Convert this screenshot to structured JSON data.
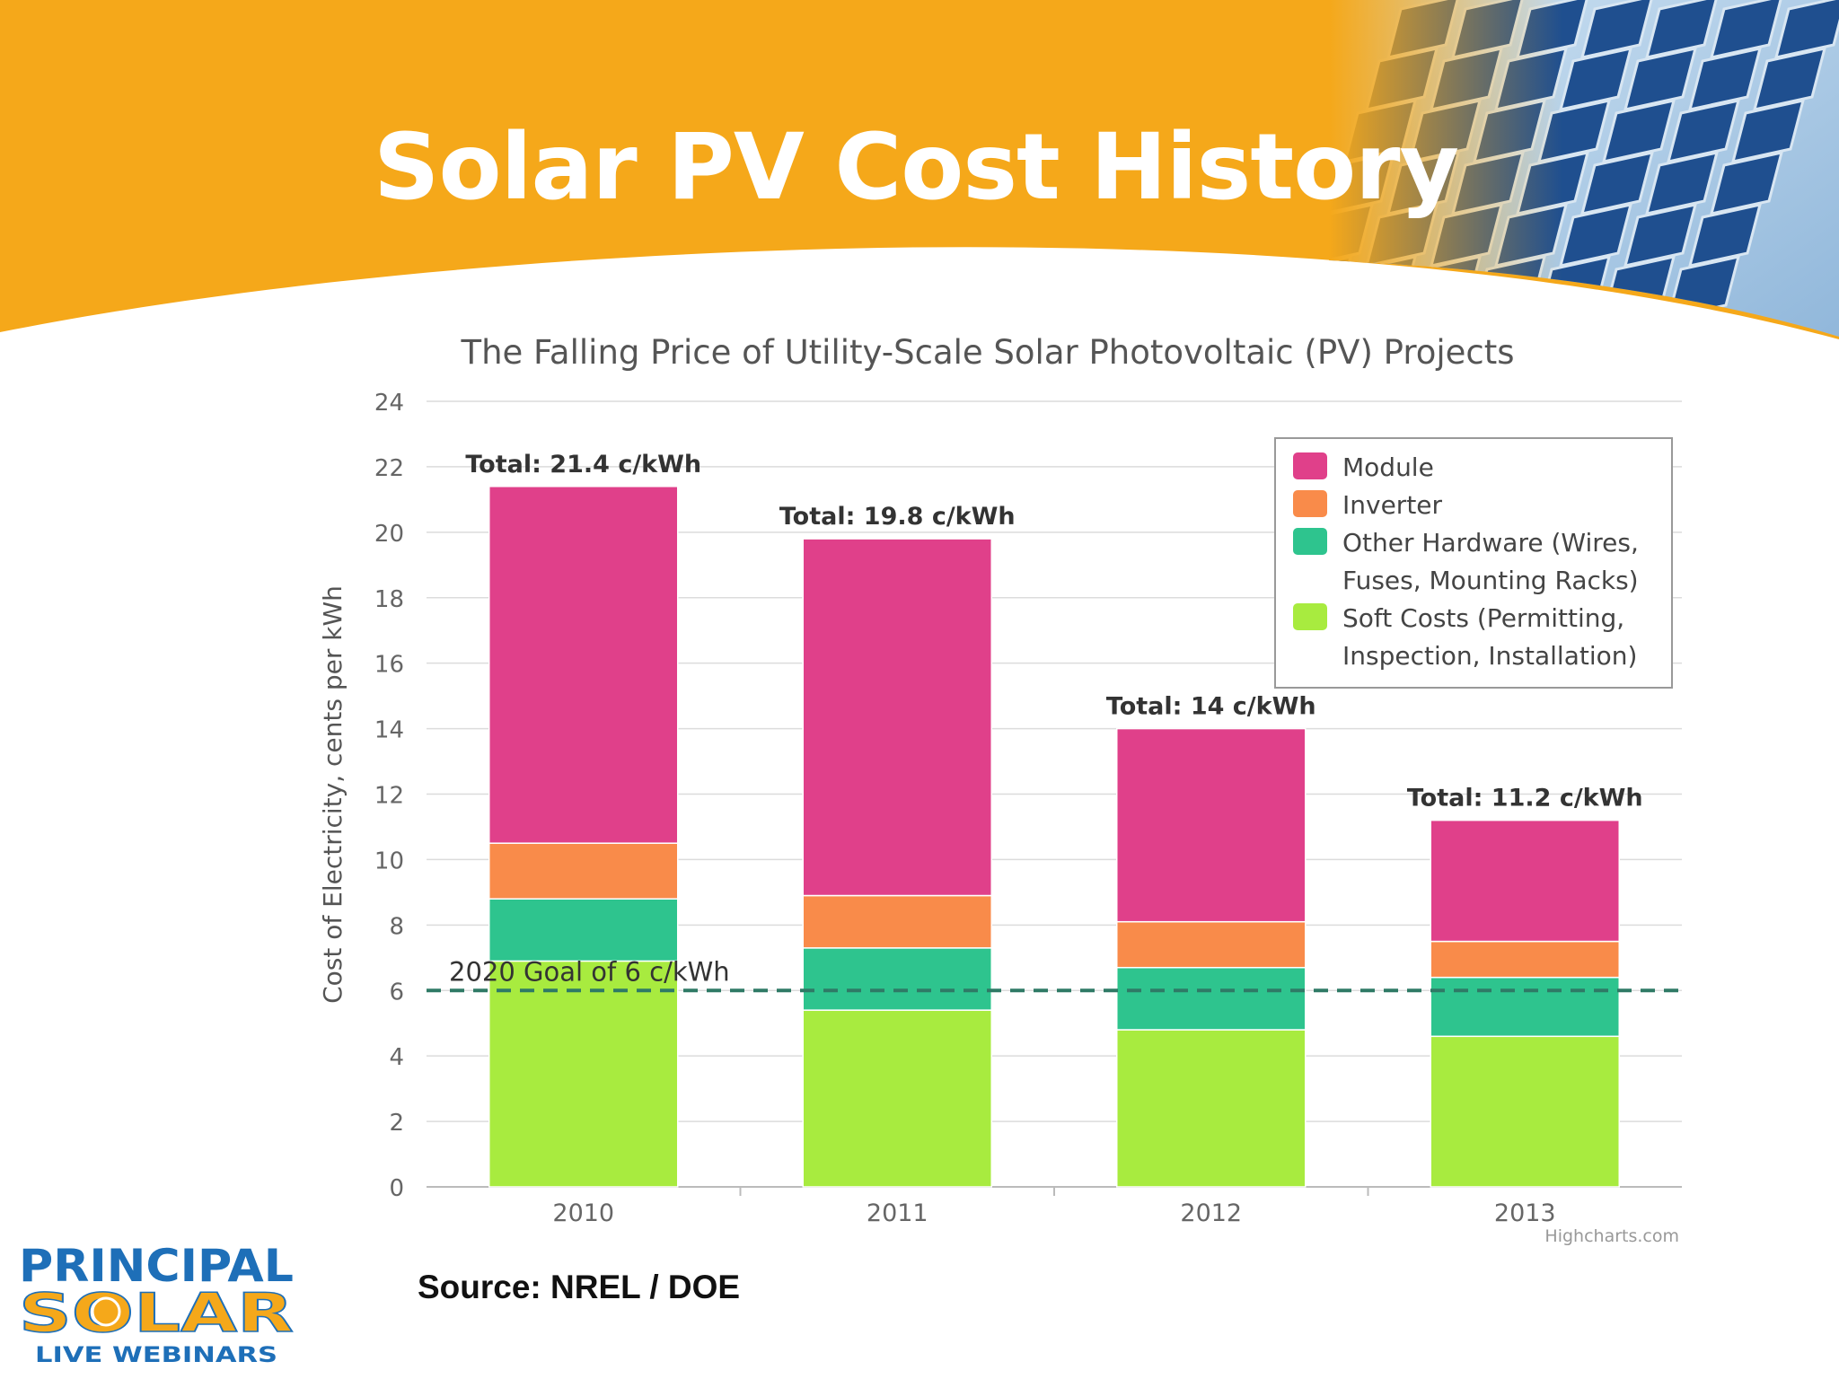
{
  "slide": {
    "title": "Solar PV Cost History",
    "source": "Source:  NREL / DOE",
    "logo": {
      "line1": "PRINCIPAL",
      "line2": "SOLAR",
      "line3": "LIVE WEBINARS"
    },
    "colors": {
      "banner": "#F5A81A",
      "title_text": "#FFFFFF"
    }
  },
  "chart_data": {
    "type": "bar",
    "stacked": true,
    "title": "The Falling Price of Utility-Scale Solar Photovoltaic (PV) Projects",
    "ylabel": "Cost of Electricity, cents per kWh",
    "xlabel": "",
    "ylim": [
      0,
      24
    ],
    "yticks": [
      0,
      2,
      4,
      6,
      8,
      10,
      12,
      14,
      16,
      18,
      20,
      22,
      24
    ],
    "grid": true,
    "categories": [
      "2010",
      "2011",
      "2012",
      "2013"
    ],
    "series": [
      {
        "name": "Soft Costs (Permitting, Inspection, Installation)",
        "legend_lines": [
          "Soft Costs (Permitting,",
          "Inspection, Installation)"
        ],
        "color": "#A8EB3F",
        "values": [
          6.9,
          5.4,
          4.8,
          4.6
        ]
      },
      {
        "name": "Other Hardware (Wires, Fuses, Mounting Racks)",
        "legend_lines": [
          "Other Hardware (Wires,",
          "Fuses, Mounting Racks)"
        ],
        "color": "#2EC48E",
        "values": [
          1.9,
          1.9,
          1.9,
          1.8
        ]
      },
      {
        "name": "Inverter",
        "legend_lines": [
          "Inverter"
        ],
        "color": "#F98B4A",
        "values": [
          1.7,
          1.6,
          1.4,
          1.1
        ]
      },
      {
        "name": "Module",
        "legend_lines": [
          "Module"
        ],
        "color": "#E0408A",
        "values": [
          10.9,
          10.9,
          5.9,
          3.7
        ]
      }
    ],
    "legend_order": [
      3,
      2,
      1,
      0
    ],
    "totals": [
      "Total: 21.4 c/kWh",
      "Total: 19.8 c/kWh",
      "Total: 14 c/kWh",
      "Total: 11.2 c/kWh"
    ],
    "goal": {
      "value": 6,
      "label": "2020 Goal of 6 c/kWh",
      "color": "#2F7A66"
    },
    "legend_position": "top-right",
    "credit": "Highcharts.com"
  }
}
